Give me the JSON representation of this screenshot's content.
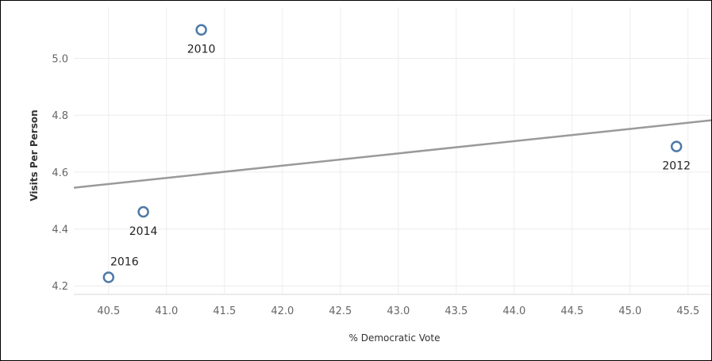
{
  "chart_data": {
    "type": "scatter",
    "title": "",
    "xlabel": "% Democratic Vote",
    "ylabel": "Visits Per Person",
    "xlim": [
      40.2,
      45.7
    ],
    "ylim": [
      4.17,
      5.18
    ],
    "xticks": [
      "40.5",
      "41.0",
      "41.5",
      "42.0",
      "42.5",
      "43.0",
      "43.5",
      "44.0",
      "44.5",
      "45.0",
      "45.5"
    ],
    "yticks": [
      "4.2",
      "4.4",
      "4.6",
      "4.8",
      "5.0"
    ],
    "grid": true,
    "points": [
      {
        "label": "2010",
        "x": 41.3,
        "y": 5.1
      },
      {
        "label": "2012",
        "x": 45.4,
        "y": 4.69
      },
      {
        "label": "2014",
        "x": 40.8,
        "y": 4.46
      },
      {
        "label": "2016",
        "x": 40.5,
        "y": 4.23
      }
    ],
    "trend_line": {
      "x": [
        40.2,
        45.7
      ],
      "y": [
        4.545,
        4.782
      ]
    },
    "colors": {
      "point": "#4e79a7",
      "trend": "#9a9a9a",
      "grid": "#ececec"
    }
  }
}
